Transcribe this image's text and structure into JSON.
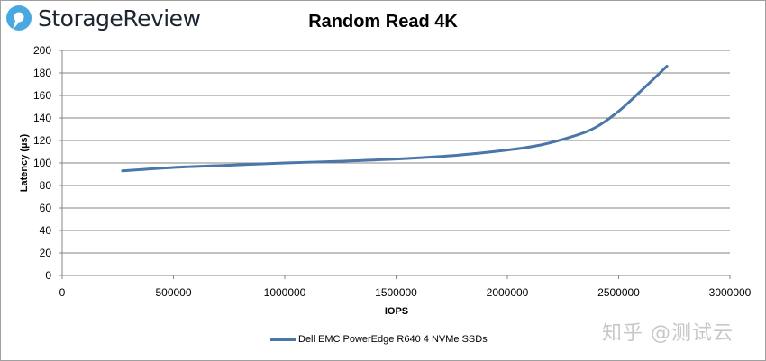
{
  "header": {
    "brand": "StorageReview",
    "brand_color": "#4aa8e0"
  },
  "watermark": "知乎 @测试云",
  "chart_data": {
    "type": "line",
    "title": "Random Read 4K",
    "xlabel": "IOPS",
    "ylabel": "Latency (µs)",
    "xlim": [
      0,
      3000000
    ],
    "ylim": [
      0,
      200
    ],
    "x_ticks": [
      "0",
      "500000",
      "1000000",
      "1500000",
      "2000000",
      "2500000",
      "3000000"
    ],
    "y_ticks": [
      "0",
      "20",
      "40",
      "60",
      "80",
      "100",
      "120",
      "140",
      "160",
      "180",
      "200"
    ],
    "grid": "horizontal",
    "legend_position": "bottom",
    "series": [
      {
        "name": "Dell EMC PowerEdge R640 4 NVMe SSDs",
        "color": "#4a76a8",
        "x": [
          271000,
          500000,
          750000,
          1000000,
          1250000,
          1500000,
          1750000,
          2000000,
          2150000,
          2300000,
          2400000,
          2500000,
          2600000,
          2717000
        ],
        "y": [
          93,
          96,
          98,
          100,
          101.5,
          103.5,
          106.5,
          111.5,
          116,
          124,
          132,
          146,
          164,
          186
        ]
      }
    ]
  }
}
